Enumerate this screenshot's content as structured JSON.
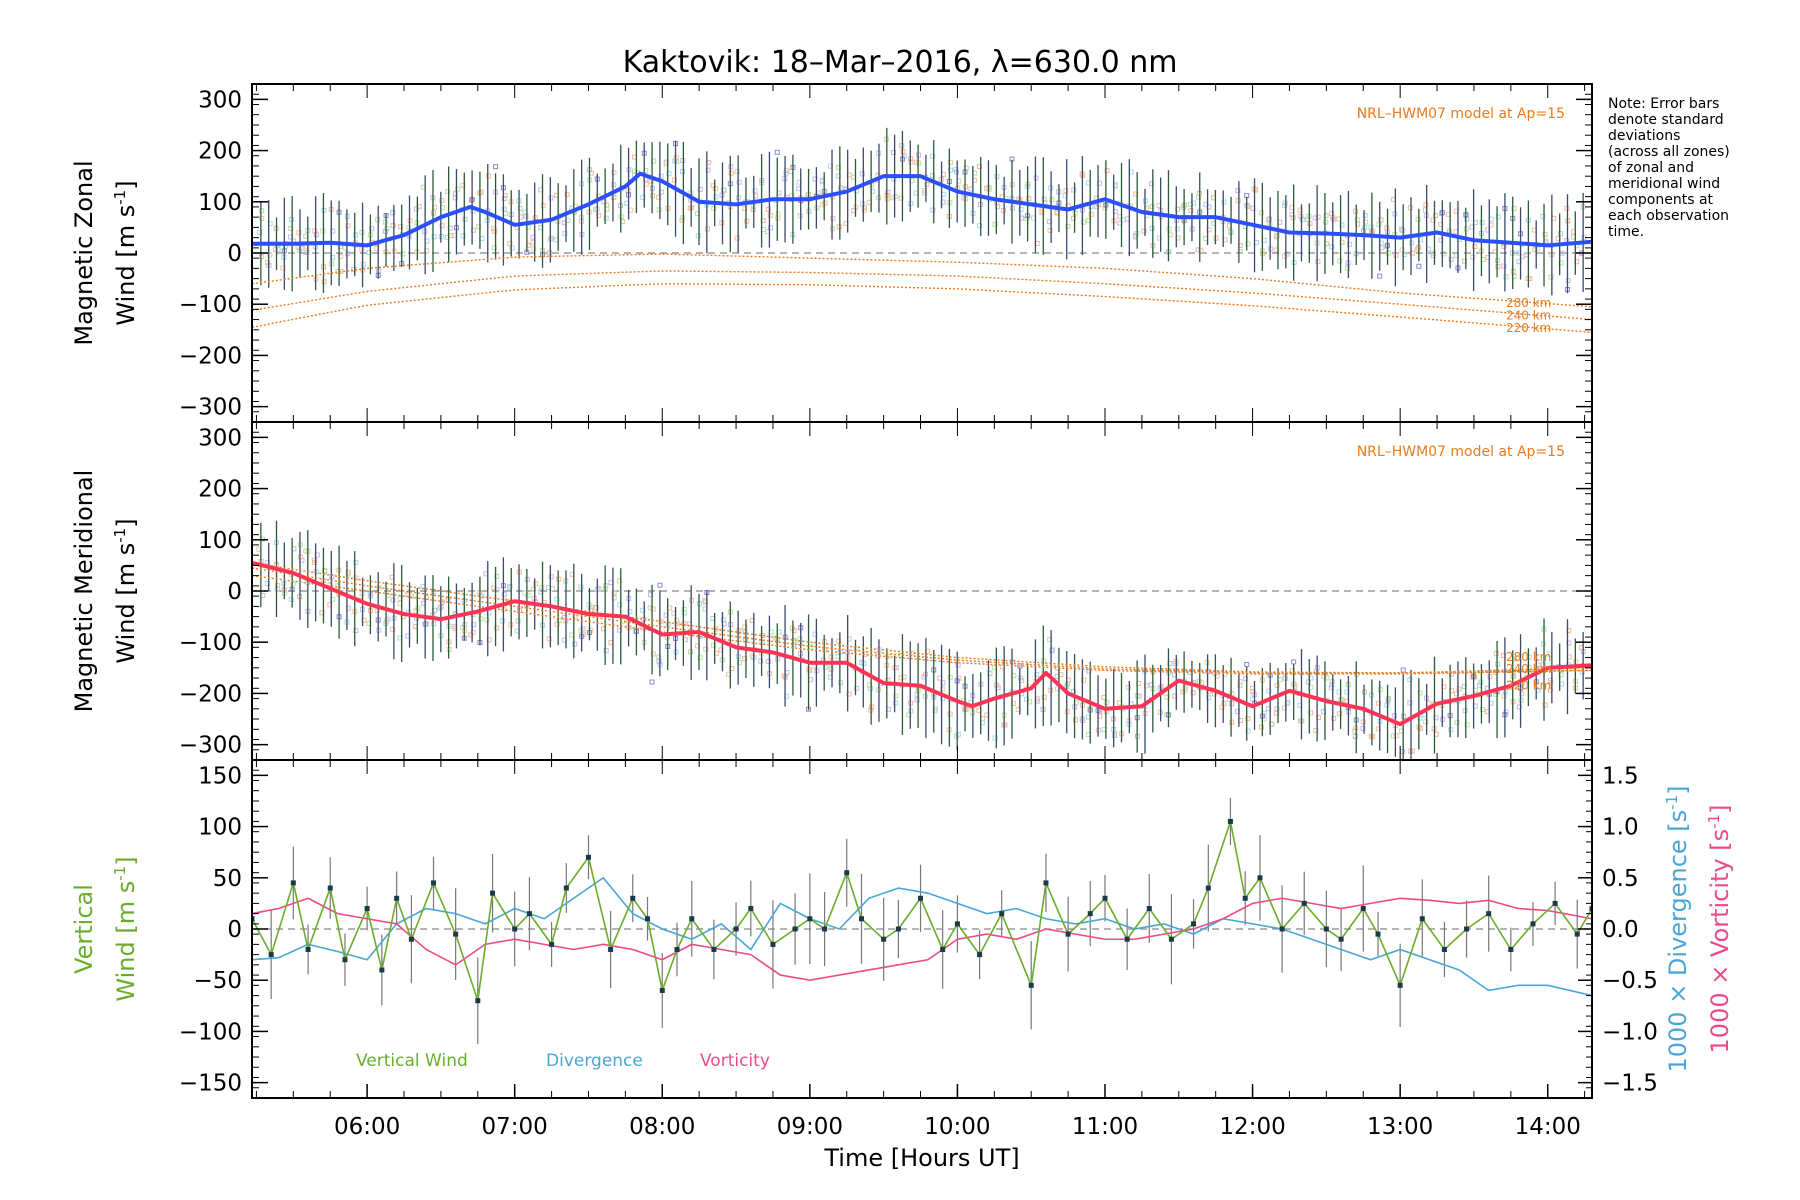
{
  "figure": {
    "title": "Kaktovik: 18–Mar–2016, λ=630.0 nm",
    "note_lines": [
      "Note: Error bars",
      "denote standard",
      "deviations",
      "(across all zones)",
      "of zonal and",
      "meridional wind",
      "components at",
      "each observation",
      "time."
    ],
    "colors": {
      "zonal_mean": "#2a4fff",
      "meridional_mean": "#ff3355",
      "model": "#ee7a1a",
      "vertical": "#6aad2a",
      "divergence": "#4aa6d8",
      "vorticity": "#ee4a8a",
      "error_bar": "#555555",
      "scatter": "#8f86d6"
    }
  },
  "chart_data": [
    {
      "type": "line",
      "id": "zonal",
      "ylabel_line1": "Magnetic Zonal",
      "ylabel_line2": "Wind [m s",
      "ylabel_sup": "-1",
      "ylabel_close": "]",
      "ylim": [
        -330,
        330
      ],
      "xlim": [
        5.22,
        14.3
      ],
      "yticks": [
        -300,
        -200,
        -100,
        0,
        100,
        200,
        300
      ],
      "ytick_labels": [
        "−300",
        "−200",
        "−100",
        "0",
        "100",
        "200",
        "300"
      ],
      "model_label": "NRL–HWM07 model at Ap=15",
      "model_curve_labels": [
        "280 km",
        "240 km",
        "220 km"
      ],
      "mean": {
        "x": [
          5.22,
          5.5,
          5.75,
          6.0,
          6.25,
          6.5,
          6.7,
          6.8,
          7.0,
          7.25,
          7.5,
          7.75,
          7.85,
          8.0,
          8.25,
          8.5,
          8.75,
          9.0,
          9.25,
          9.5,
          9.75,
          10.0,
          10.25,
          10.5,
          10.75,
          11.0,
          11.25,
          11.5,
          11.75,
          12.0,
          12.25,
          12.5,
          12.75,
          13.0,
          13.25,
          13.5,
          13.75,
          14.0,
          14.3
        ],
        "y": [
          18,
          18,
          20,
          15,
          35,
          70,
          90,
          80,
          55,
          65,
          95,
          130,
          155,
          140,
          100,
          95,
          105,
          105,
          120,
          150,
          150,
          120,
          105,
          95,
          85,
          105,
          80,
          70,
          70,
          55,
          40,
          38,
          35,
          30,
          40,
          25,
          20,
          15,
          22
        ]
      },
      "model_curves": [
        {
          "x": [
            5.22,
            6.0,
            7.0,
            8.0,
            9.0,
            10.0,
            11.0,
            12.0,
            13.0,
            14.3
          ],
          "y": [
            -60,
            -30,
            -8,
            -2,
            -10,
            -18,
            -30,
            -50,
            -78,
            -105
          ]
        },
        {
          "x": [
            5.22,
            6.0,
            7.0,
            8.0,
            9.0,
            10.0,
            11.0,
            12.0,
            13.0,
            14.3
          ],
          "y": [
            -112,
            -75,
            -45,
            -35,
            -38,
            -45,
            -60,
            -78,
            -100,
            -130
          ]
        },
        {
          "x": [
            5.22,
            6.0,
            7.0,
            8.0,
            9.0,
            10.0,
            11.0,
            12.0,
            13.0,
            14.3
          ],
          "y": [
            -145,
            -102,
            -72,
            -60,
            -62,
            -70,
            -85,
            -103,
            -125,
            -155
          ]
        }
      ]
    },
    {
      "type": "line",
      "id": "meridional",
      "ylabel_line1": "Magnetic Meridional",
      "ylabel_line2": "Wind [m s",
      "ylabel_sup": "-1",
      "ylabel_close": "]",
      "ylim": [
        -330,
        330
      ],
      "xlim": [
        5.22,
        14.3
      ],
      "yticks": [
        -300,
        -200,
        -100,
        0,
        100,
        200,
        300
      ],
      "ytick_labels": [
        "−300",
        "−200",
        "−100",
        "0",
        "100",
        "200",
        "300"
      ],
      "model_label": "NRL–HWM07 model at Ap=15",
      "model_curve_labels": [
        "280 km",
        "240 km",
        "220 km"
      ],
      "mean": {
        "x": [
          5.22,
          5.5,
          5.75,
          6.0,
          6.25,
          6.5,
          6.75,
          7.0,
          7.25,
          7.5,
          7.75,
          8.0,
          8.25,
          8.5,
          8.75,
          9.0,
          9.25,
          9.5,
          9.75,
          10.0,
          10.1,
          10.25,
          10.5,
          10.6,
          10.75,
          11.0,
          11.25,
          11.5,
          11.75,
          12.0,
          12.25,
          12.5,
          12.75,
          13.0,
          13.25,
          13.5,
          13.75,
          14.0,
          14.3
        ],
        "y": [
          55,
          35,
          5,
          -25,
          -45,
          -55,
          -40,
          -20,
          -30,
          -45,
          -50,
          -85,
          -80,
          -110,
          -120,
          -140,
          -140,
          -180,
          -185,
          -215,
          -225,
          -210,
          -190,
          -160,
          -200,
          -230,
          -225,
          -175,
          -195,
          -225,
          -195,
          -215,
          -230,
          -260,
          -220,
          -205,
          -185,
          -150,
          -145
        ]
      },
      "model_curves": [
        {
          "x": [
            5.22,
            6.0,
            7.0,
            8.0,
            9.0,
            10.0,
            11.0,
            12.0,
            13.0,
            14.3
          ],
          "y": [
            55,
            20,
            -20,
            -60,
            -100,
            -130,
            -148,
            -158,
            -160,
            -155
          ]
        },
        {
          "x": [
            5.22,
            6.0,
            7.0,
            8.0,
            9.0,
            10.0,
            11.0,
            12.0,
            13.0,
            14.3
          ],
          "y": [
            45,
            10,
            -30,
            -70,
            -108,
            -135,
            -152,
            -160,
            -160,
            -150
          ]
        },
        {
          "x": [
            5.22,
            6.0,
            7.0,
            8.0,
            9.0,
            10.0,
            11.0,
            12.0,
            13.0,
            14.3
          ],
          "y": [
            30,
            0,
            -40,
            -80,
            -115,
            -140,
            -155,
            -162,
            -162,
            -155
          ]
        }
      ]
    },
    {
      "type": "line",
      "id": "vertical",
      "ylabel_line1": "Vertical",
      "ylabel_line2": "Wind [m s",
      "ylabel_sup": "-1",
      "ylabel_close": "]",
      "ylim": [
        -165,
        165
      ],
      "xlim": [
        5.22,
        14.3
      ],
      "yticks": [
        -150,
        -100,
        -50,
        0,
        50,
        100,
        150
      ],
      "ytick_labels": [
        "−150",
        "−100",
        "−50",
        "0",
        "50",
        "100",
        "150"
      ],
      "y2lim": [
        -1.65,
        1.65
      ],
      "y2ticks": [
        -1.5,
        -1.0,
        -0.5,
        0.0,
        0.5,
        1.0,
        1.5
      ],
      "y2tick_labels": [
        "−1.5",
        "−1.0",
        "−0.5",
        "0.0",
        "0.5",
        "1.0",
        "1.5"
      ],
      "y2label_div": "1000 × Divergence [s",
      "y2label_vort": "1000 × Vorticity [s",
      "y2label_sup": "-1",
      "y2label_close": "]",
      "xticks": [
        6,
        7,
        8,
        9,
        10,
        11,
        12,
        13,
        14
      ],
      "xtick_labels": [
        "06:00",
        "07:00",
        "08:00",
        "09:00",
        "10:00",
        "11:00",
        "12:00",
        "13:00",
        "14:00"
      ],
      "xlabel": "Time [Hours UT]",
      "legend": [
        "Vertical Wind",
        "Divergence",
        "Vorticity"
      ],
      "series": [
        {
          "name": "Vertical Wind",
          "x": [
            5.22,
            5.35,
            5.5,
            5.6,
            5.75,
            5.85,
            6.0,
            6.1,
            6.2,
            6.3,
            6.45,
            6.6,
            6.75,
            6.85,
            7.0,
            7.1,
            7.25,
            7.35,
            7.5,
            7.65,
            7.8,
            7.9,
            8.0,
            8.1,
            8.2,
            8.35,
            8.5,
            8.6,
            8.75,
            8.9,
            9.0,
            9.1,
            9.25,
            9.35,
            9.5,
            9.6,
            9.75,
            9.9,
            10.0,
            10.15,
            10.3,
            10.5,
            10.6,
            10.75,
            10.9,
            11.0,
            11.15,
            11.3,
            11.45,
            11.6,
            11.7,
            11.85,
            11.95,
            12.05,
            12.2,
            12.35,
            12.5,
            12.6,
            12.75,
            12.85,
            13.0,
            13.15,
            13.3,
            13.45,
            13.6,
            13.75,
            13.9,
            14.05,
            14.2,
            14.3
          ],
          "y": [
            10,
            -25,
            45,
            -20,
            40,
            -30,
            20,
            -40,
            30,
            -10,
            45,
            -5,
            -70,
            35,
            0,
            15,
            -15,
            40,
            70,
            -20,
            30,
            10,
            -60,
            -20,
            10,
            -20,
            0,
            20,
            -15,
            0,
            10,
            0,
            55,
            10,
            -10,
            0,
            30,
            -20,
            5,
            -25,
            15,
            -55,
            45,
            -5,
            15,
            30,
            -10,
            20,
            -10,
            5,
            40,
            105,
            30,
            50,
            0,
            25,
            0,
            -10,
            20,
            -5,
            -55,
            10,
            -20,
            0,
            15,
            -20,
            5,
            25,
            -5,
            20
          ]
        },
        {
          "name": "Divergence",
          "x": [
            5.22,
            5.4,
            5.6,
            5.8,
            6.0,
            6.2,
            6.4,
            6.6,
            6.8,
            7.0,
            7.2,
            7.4,
            7.6,
            7.8,
            8.0,
            8.2,
            8.4,
            8.6,
            8.8,
            9.0,
            9.2,
            9.4,
            9.6,
            9.8,
            10.0,
            10.2,
            10.4,
            10.6,
            10.8,
            11.0,
            11.2,
            11.4,
            11.6,
            11.8,
            12.0,
            12.2,
            12.4,
            12.6,
            12.8,
            13.0,
            13.2,
            13.4,
            13.6,
            13.8,
            14.0,
            14.3
          ],
          "y": [
            -0.3,
            -0.28,
            -0.15,
            -0.22,
            -0.3,
            0.05,
            0.2,
            0.15,
            0.05,
            0.2,
            0.1,
            0.3,
            0.5,
            0.15,
            0.0,
            -0.1,
            0.05,
            -0.2,
            0.25,
            0.1,
            0.0,
            0.3,
            0.4,
            0.35,
            0.25,
            0.15,
            0.2,
            0.1,
            0.05,
            0.1,
            0.0,
            0.05,
            -0.05,
            0.1,
            0.05,
            0.0,
            -0.1,
            -0.2,
            -0.3,
            -0.2,
            -0.3,
            -0.4,
            -0.6,
            -0.55,
            -0.55,
            -0.65
          ]
        },
        {
          "name": "Vorticity",
          "x": [
            5.22,
            5.4,
            5.6,
            5.8,
            6.0,
            6.2,
            6.4,
            6.6,
            6.8,
            7.0,
            7.2,
            7.4,
            7.6,
            7.8,
            8.0,
            8.2,
            8.4,
            8.6,
            8.8,
            9.0,
            9.2,
            9.4,
            9.6,
            9.8,
            10.0,
            10.2,
            10.4,
            10.6,
            10.8,
            11.0,
            11.2,
            11.4,
            11.6,
            11.8,
            12.0,
            12.2,
            12.4,
            12.6,
            12.8,
            13.0,
            13.2,
            13.4,
            13.6,
            13.8,
            14.0,
            14.3
          ],
          "y": [
            0.15,
            0.2,
            0.3,
            0.15,
            0.1,
            0.05,
            -0.2,
            -0.35,
            -0.15,
            -0.1,
            -0.15,
            -0.2,
            -0.15,
            -0.2,
            -0.3,
            -0.15,
            -0.2,
            -0.25,
            -0.45,
            -0.5,
            -0.45,
            -0.4,
            -0.35,
            -0.3,
            -0.1,
            -0.05,
            -0.1,
            0.0,
            -0.05,
            -0.1,
            -0.1,
            -0.05,
            0.0,
            0.1,
            0.25,
            0.3,
            0.25,
            0.2,
            0.25,
            0.3,
            0.28,
            0.25,
            0.28,
            0.2,
            0.18,
            0.1
          ]
        }
      ]
    }
  ]
}
